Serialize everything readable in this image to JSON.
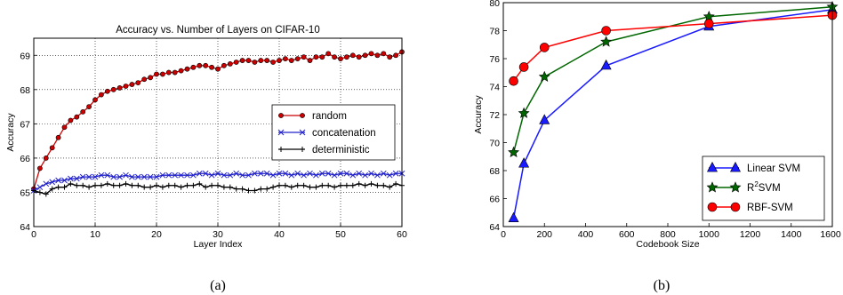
{
  "chart_data": [
    {
      "type": "line",
      "title": "Accuracy vs. Number of Layers on CIFAR-10",
      "xlabel": "Layer Index",
      "ylabel": "Accuracy",
      "xlim": [
        0,
        60
      ],
      "ylim": [
        64,
        69.5
      ],
      "xticks": [
        0,
        10,
        20,
        30,
        40,
        50,
        60
      ],
      "yticks": [
        64,
        65,
        66,
        67,
        68,
        69
      ],
      "grid": true,
      "legend_position": "center-right",
      "caption": "(a)",
      "series": [
        {
          "name": "random",
          "color": "#cc0000",
          "marker": "circle",
          "x": [
            0,
            1,
            2,
            3,
            4,
            5,
            6,
            7,
            8,
            9,
            10,
            11,
            12,
            13,
            14,
            15,
            16,
            17,
            18,
            19,
            20,
            21,
            22,
            23,
            24,
            25,
            26,
            27,
            28,
            29,
            30,
            31,
            32,
            33,
            34,
            35,
            36,
            37,
            38,
            39,
            40,
            41,
            42,
            43,
            44,
            45,
            46,
            47,
            48,
            49,
            50,
            51,
            52,
            53,
            54,
            55,
            56,
            57,
            58,
            59,
            60
          ],
          "values": [
            65.1,
            65.7,
            66.0,
            66.3,
            66.6,
            66.9,
            67.1,
            67.2,
            67.35,
            67.5,
            67.7,
            67.85,
            67.95,
            68.0,
            68.05,
            68.1,
            68.15,
            68.2,
            68.3,
            68.35,
            68.45,
            68.45,
            68.5,
            68.5,
            68.55,
            68.6,
            68.65,
            68.7,
            68.7,
            68.65,
            68.6,
            68.7,
            68.75,
            68.8,
            68.85,
            68.85,
            68.8,
            68.85,
            68.85,
            68.8,
            68.85,
            68.9,
            68.85,
            68.9,
            68.95,
            68.85,
            68.95,
            68.95,
            69.05,
            68.95,
            68.9,
            68.95,
            69.0,
            68.95,
            69.0,
            69.05,
            69.0,
            69.05,
            68.95,
            69.0,
            69.1
          ]
        },
        {
          "name": "concatenation",
          "color": "#2222cc",
          "marker": "x",
          "x": [
            0,
            1,
            2,
            3,
            4,
            5,
            6,
            7,
            8,
            9,
            10,
            11,
            12,
            13,
            14,
            15,
            16,
            17,
            18,
            19,
            20,
            21,
            22,
            23,
            24,
            25,
            26,
            27,
            28,
            29,
            30,
            31,
            32,
            33,
            34,
            35,
            36,
            37,
            38,
            39,
            40,
            41,
            42,
            43,
            44,
            45,
            46,
            47,
            48,
            49,
            50,
            51,
            52,
            53,
            54,
            55,
            56,
            57,
            58,
            59,
            60
          ],
          "values": [
            65.05,
            65.15,
            65.25,
            65.3,
            65.35,
            65.35,
            65.4,
            65.4,
            65.45,
            65.45,
            65.45,
            65.5,
            65.5,
            65.45,
            65.45,
            65.5,
            65.45,
            65.45,
            65.45,
            65.45,
            65.45,
            65.5,
            65.5,
            65.5,
            65.5,
            65.5,
            65.5,
            65.55,
            65.55,
            65.5,
            65.55,
            65.5,
            65.5,
            65.55,
            65.5,
            65.5,
            65.55,
            65.55,
            65.55,
            65.5,
            65.55,
            65.55,
            65.5,
            65.55,
            65.5,
            65.55,
            65.5,
            65.55,
            65.55,
            65.5,
            65.55,
            65.55,
            65.5,
            65.55,
            65.5,
            65.55,
            65.5,
            65.55,
            65.5,
            65.55,
            65.55
          ]
        },
        {
          "name": "deterministic",
          "color": "#000000",
          "marker": "plus",
          "x": [
            0,
            1,
            2,
            3,
            4,
            5,
            6,
            7,
            8,
            9,
            10,
            11,
            12,
            13,
            14,
            15,
            16,
            17,
            18,
            19,
            20,
            21,
            22,
            23,
            24,
            25,
            26,
            27,
            28,
            29,
            30,
            31,
            32,
            33,
            34,
            35,
            36,
            37,
            38,
            39,
            40,
            41,
            42,
            43,
            44,
            45,
            46,
            47,
            48,
            49,
            50,
            51,
            52,
            53,
            54,
            55,
            56,
            57,
            58,
            59,
            60
          ],
          "values": [
            65.05,
            65.0,
            64.95,
            65.1,
            65.15,
            65.15,
            65.25,
            65.2,
            65.2,
            65.15,
            65.2,
            65.2,
            65.25,
            65.2,
            65.2,
            65.25,
            65.2,
            65.2,
            65.15,
            65.15,
            65.2,
            65.15,
            65.2,
            65.2,
            65.15,
            65.2,
            65.2,
            65.25,
            65.15,
            65.2,
            65.2,
            65.15,
            65.15,
            65.1,
            65.1,
            65.05,
            65.05,
            65.1,
            65.1,
            65.15,
            65.2,
            65.2,
            65.15,
            65.2,
            65.2,
            65.15,
            65.15,
            65.2,
            65.2,
            65.15,
            65.2,
            65.2,
            65.2,
            65.25,
            65.2,
            65.25,
            65.2,
            65.2,
            65.15,
            65.25,
            65.2
          ]
        }
      ]
    },
    {
      "type": "line",
      "title": "",
      "xlabel": "Codebook Size",
      "ylabel": "Accuracy",
      "xlim": [
        0,
        1600
      ],
      "ylim": [
        64,
        80
      ],
      "xticks": [
        0,
        200,
        400,
        600,
        800,
        1000,
        1200,
        1400,
        1600
      ],
      "yticks": [
        64,
        66,
        68,
        70,
        72,
        74,
        76,
        78,
        80
      ],
      "grid": false,
      "legend_position": "lower-right",
      "caption": "(b)",
      "series": [
        {
          "name": "Linear SVM",
          "color": "#1a1aff",
          "marker": "triangle",
          "x": [
            50,
            100,
            200,
            500,
            1000,
            1600
          ],
          "values": [
            64.6,
            68.5,
            71.6,
            75.5,
            78.3,
            79.5
          ]
        },
        {
          "name": "R²SVM",
          "name_base": "R",
          "name_sup": "2",
          "name_rest": "SVM",
          "color": "#006600",
          "marker": "star",
          "x": [
            50,
            100,
            200,
            500,
            1000,
            1600
          ],
          "values": [
            69.3,
            72.1,
            74.7,
            77.2,
            79.0,
            79.7
          ]
        },
        {
          "name": "RBF-SVM",
          "color": "#ff0000",
          "marker": "circle",
          "x": [
            50,
            100,
            200,
            500,
            1000,
            1600
          ],
          "values": [
            74.4,
            75.4,
            76.8,
            78.0,
            78.5,
            79.1
          ]
        }
      ]
    }
  ]
}
